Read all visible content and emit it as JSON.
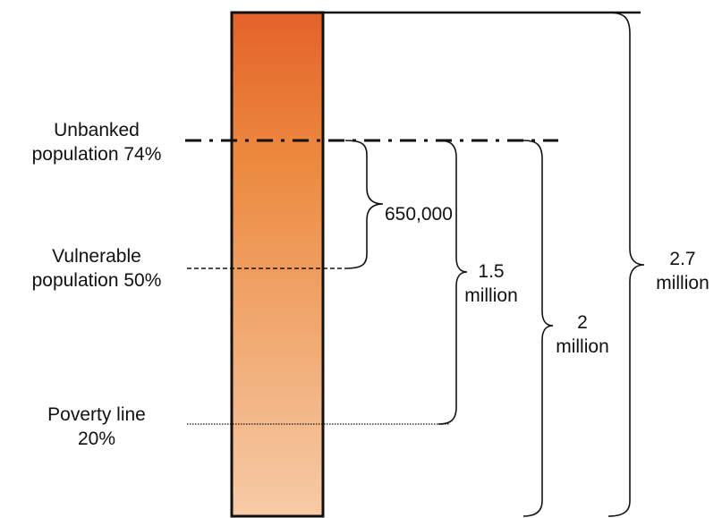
{
  "bar": {
    "gradient_top": "#E4622A",
    "gradient_mid": "#EC8A3F",
    "gradient_bottom": "#F6CBA7",
    "outline": "#111111"
  },
  "levels": [
    {
      "id": "unbanked",
      "line1": "Unbanked",
      "line2": "population 74%",
      "line_style": "dash-dot"
    },
    {
      "id": "vulnerable",
      "line1": "Vulnerable",
      "line2": "population 50%",
      "line_style": "short-dash"
    },
    {
      "id": "poverty",
      "line1": "Poverty line",
      "line2": "20%",
      "line_style": "dotted"
    }
  ],
  "braces": [
    {
      "id": "brace-650k",
      "line1": "650,000",
      "line2": ""
    },
    {
      "id": "brace-1-5m",
      "line1": "1.5",
      "line2": "million"
    },
    {
      "id": "brace-2m",
      "line1": "2",
      "line2": "million"
    },
    {
      "id": "brace-2-7m",
      "line1": "2.7",
      "line2": "million"
    }
  ]
}
